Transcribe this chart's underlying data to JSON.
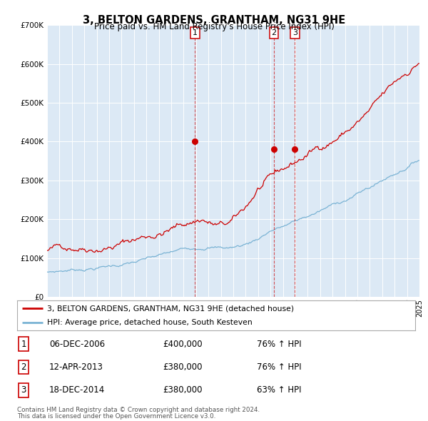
{
  "title": "3, BELTON GARDENS, GRANTHAM, NG31 9HE",
  "subtitle": "Price paid vs. HM Land Registry's House Price Index (HPI)",
  "bg_color": "#dce9f5",
  "outer_bg_color": "#ffffff",
  "red_line_color": "#cc0000",
  "blue_line_color": "#7ab3d4",
  "ylim": [
    0,
    700000
  ],
  "yticks": [
    0,
    100000,
    200000,
    300000,
    400000,
    500000,
    600000,
    700000
  ],
  "ytick_labels": [
    "£0",
    "£100K",
    "£200K",
    "£300K",
    "£400K",
    "£500K",
    "£600K",
    "£700K"
  ],
  "sale_date_nums": [
    2006.92,
    2013.27,
    2014.96
  ],
  "sale_prices": [
    400000,
    380000,
    380000
  ],
  "sale_labels": [
    "1",
    "2",
    "3"
  ],
  "legend_red": "3, BELTON GARDENS, GRANTHAM, NG31 9HE (detached house)",
  "legend_blue": "HPI: Average price, detached house, South Kesteven",
  "table_rows": [
    [
      "1",
      "06-DEC-2006",
      "£400,000",
      "76% ↑ HPI"
    ],
    [
      "2",
      "12-APR-2013",
      "£380,000",
      "76% ↑ HPI"
    ],
    [
      "3",
      "18-DEC-2014",
      "£380,000",
      "63% ↑ HPI"
    ]
  ],
  "footnote1": "Contains HM Land Registry data © Crown copyright and database right 2024.",
  "footnote2": "This data is licensed under the Open Government Licence v3.0."
}
